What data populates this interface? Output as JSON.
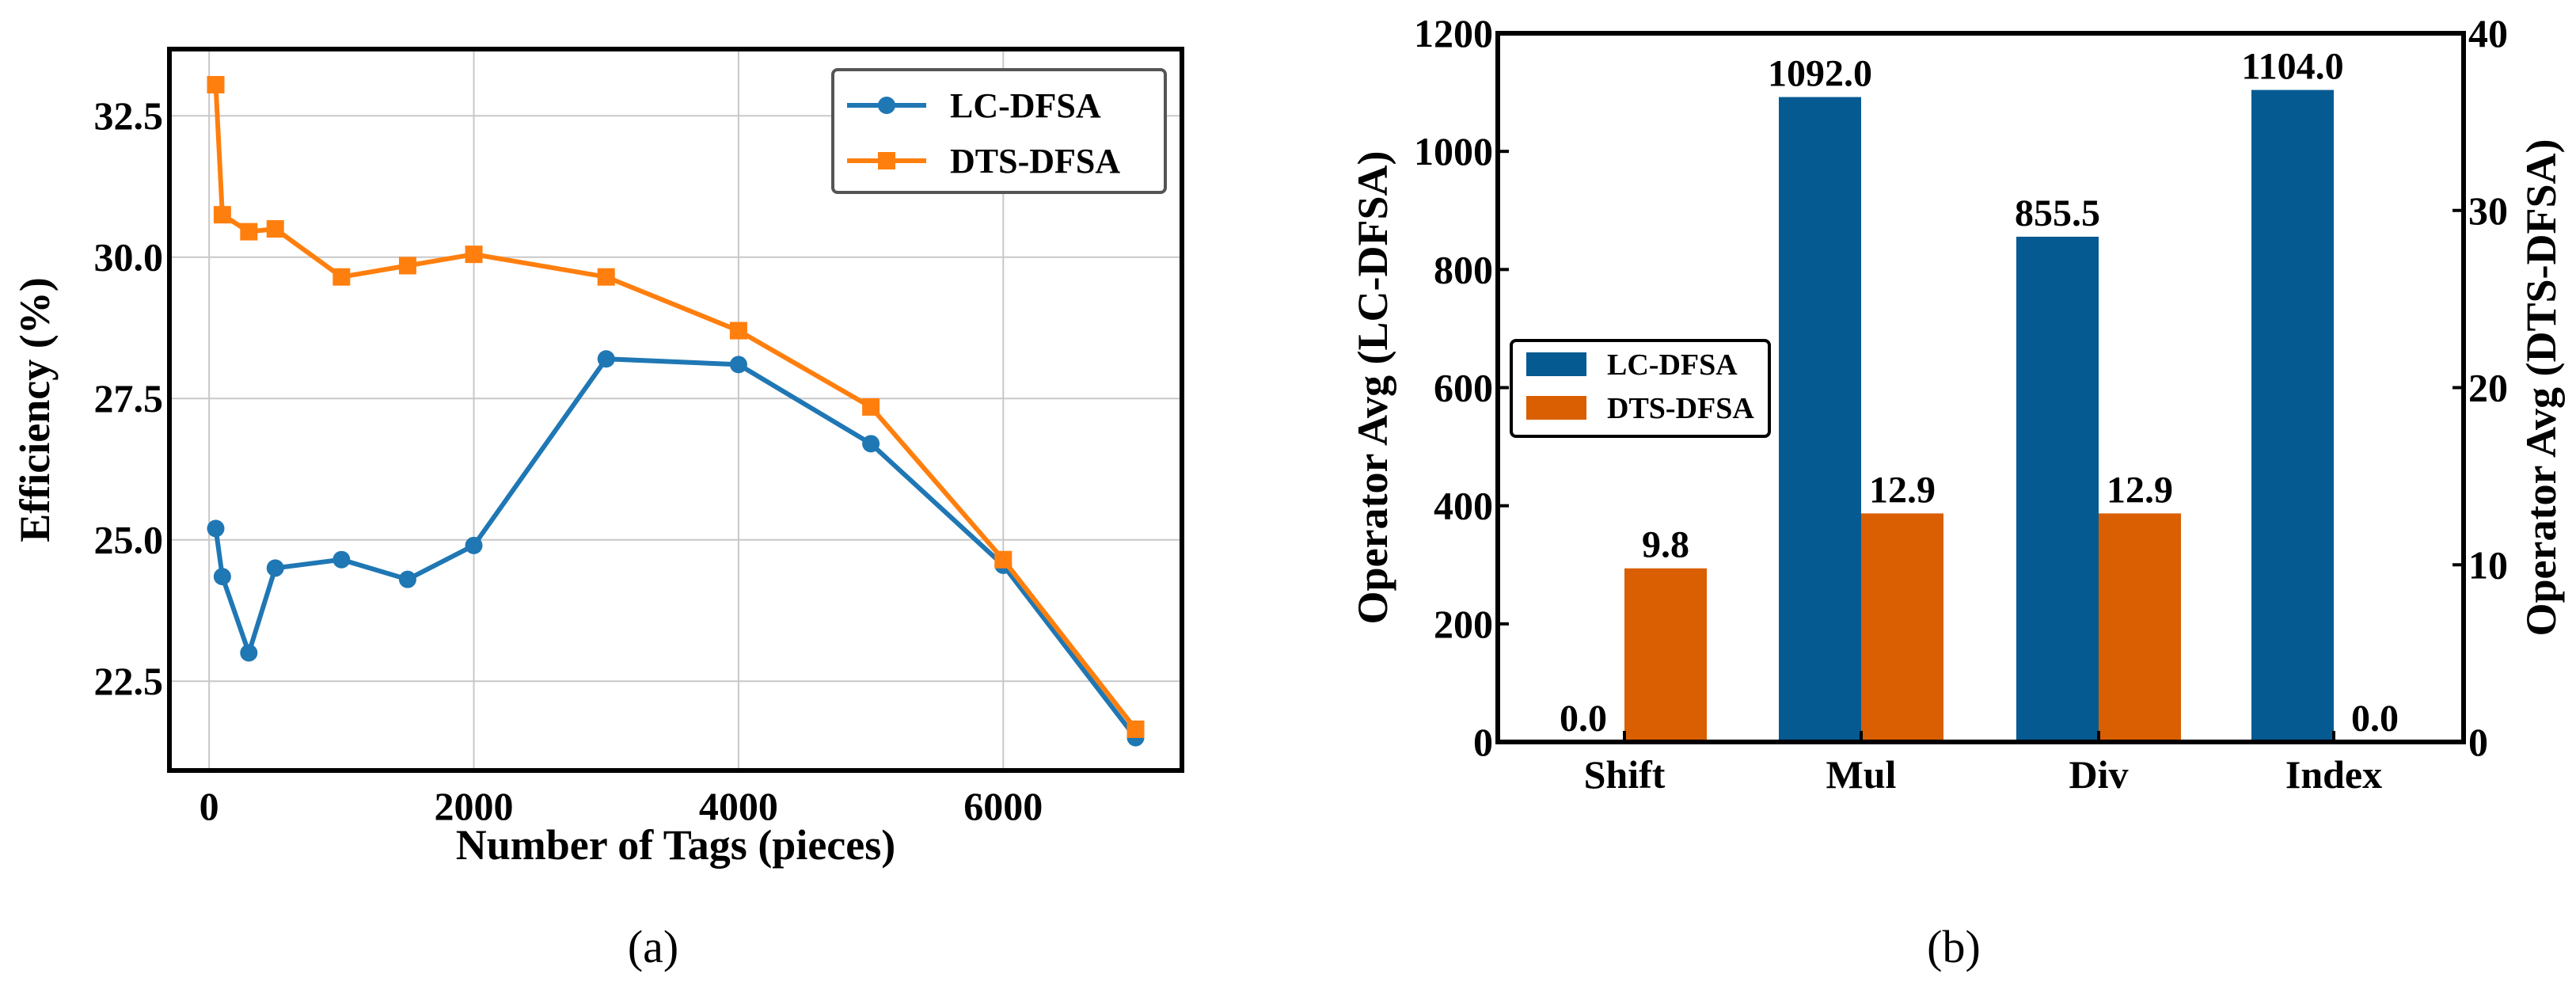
{
  "chart_data": [
    {
      "type": "line",
      "caption": "(a)",
      "xlabel": "Number of Tags (pieces)",
      "ylabel": "Efficiency (%)",
      "xlim": [
        -300,
        7350
      ],
      "ylim": [
        20.92,
        33.68
      ],
      "xticks": [
        0,
        2000,
        4000,
        6000
      ],
      "xtick_labels": [
        "0",
        "2000",
        "4000",
        "6000"
      ],
      "yticks": [
        22.5,
        25.0,
        27.5,
        30.0,
        32.5
      ],
      "ytick_labels": [
        "22.5",
        "25.0",
        "27.5",
        "30.0",
        "32.5"
      ],
      "grid": true,
      "legend_placement": "top-right",
      "x": [
        50,
        100,
        300,
        500,
        1000,
        1500,
        2000,
        3000,
        4000,
        5000,
        6000,
        7000
      ],
      "series": [
        {
          "name": "LC-DFSA",
          "color": "#1f77b4",
          "marker": "circle",
          "values": [
            25.2,
            24.35,
            23.0,
            24.5,
            24.65,
            24.3,
            24.9,
            28.2,
            28.1,
            26.7,
            24.55,
            21.5
          ]
        },
        {
          "name": "DTS-DFSA",
          "color": "#ff7f0e",
          "marker": "square",
          "values": [
            33.05,
            30.75,
            30.45,
            30.5,
            29.65,
            29.85,
            30.05,
            29.65,
            28.7,
            27.35,
            24.65,
            21.65
          ]
        }
      ]
    },
    {
      "type": "bar",
      "caption": "(b)",
      "categories": [
        "Shift",
        "Mul",
        "Div",
        "Index"
      ],
      "ylabel": "Operator Avg (LC-DFSA)",
      "ylabel_right": "Operator Avg (DTS-DFSA)",
      "ylim": [
        0,
        1200
      ],
      "ylim_right": [
        0,
        40
      ],
      "yticks": [
        0,
        200,
        400,
        600,
        800,
        1000,
        1200
      ],
      "ytick_labels": [
        "0",
        "200",
        "400",
        "600",
        "800",
        "1000",
        "1200"
      ],
      "yticks_right": [
        0,
        10,
        20,
        30,
        40
      ],
      "ytick_labels_right": [
        "0",
        "10",
        "20",
        "30",
        "40"
      ],
      "grid": false,
      "legend_placement": "center-left",
      "series": [
        {
          "name": "LC-DFSA",
          "axis": "left",
          "color": "#065a92",
          "values": [
            0.0,
            1092.0,
            855.5,
            1104.0
          ],
          "labels": [
            "0.0",
            "1092.0",
            "855.5",
            "1104.0"
          ]
        },
        {
          "name": "DTS-DFSA",
          "axis": "right",
          "color": "#d95f02",
          "values": [
            9.8,
            12.9,
            12.9,
            0.0
          ],
          "labels": [
            "9.8",
            "12.9",
            "12.9",
            "0.0"
          ]
        }
      ]
    }
  ]
}
